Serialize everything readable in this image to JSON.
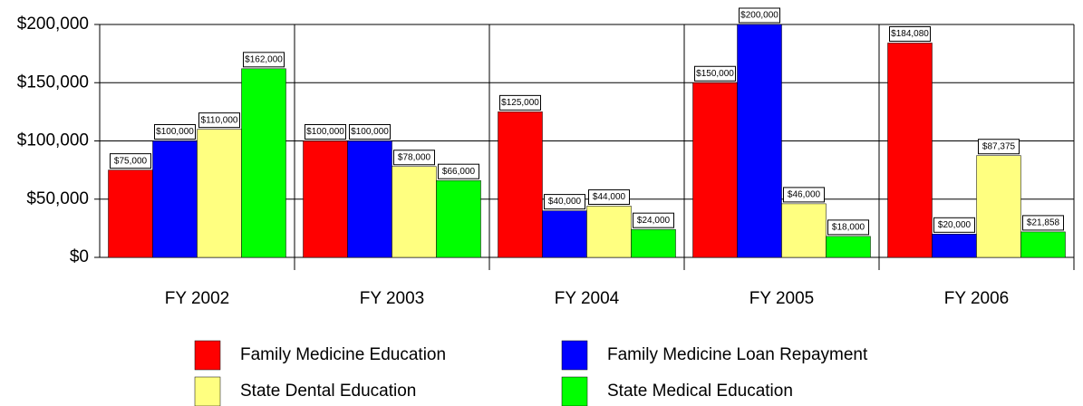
{
  "chart_data": {
    "type": "bar",
    "categories": [
      "FY 2002",
      "FY 2003",
      "FY 2004",
      "FY 2005",
      "FY 2006"
    ],
    "series": [
      {
        "name": "Family Medicine Education",
        "color": "#ff0000",
        "values": [
          75000,
          100000,
          125000,
          150000,
          184080
        ],
        "value_labels": [
          "$75,000",
          "$100,000",
          "$125,000",
          "$150,000",
          "$184,080"
        ]
      },
      {
        "name": "Family Medicine Loan Repayment",
        "color": "#0000ff",
        "values": [
          100000,
          100000,
          40000,
          200000,
          20000
        ],
        "value_labels": [
          "$100,000",
          "$100,000",
          "$40,000",
          "$200,000",
          "$20,000"
        ]
      },
      {
        "name": "State Dental Education",
        "color": "#ffff80",
        "values": [
          110000,
          78000,
          44000,
          46000,
          87375
        ],
        "value_labels": [
          "$110,000",
          "$78,000",
          "$44,000",
          "$46,000",
          "$87,375"
        ]
      },
      {
        "name": "State Medical Education",
        "color": "#00ff00",
        "values": [
          162000,
          66000,
          24000,
          18000,
          21858
        ],
        "value_labels": [
          "$162,000",
          "$66,000",
          "$24,000",
          "$18,000",
          "$21,858"
        ]
      }
    ],
    "ylim": [
      0,
      200000
    ],
    "yticks": [
      {
        "value": 0,
        "label": "$0"
      },
      {
        "value": 50000,
        "label": "$50,000"
      },
      {
        "value": 100000,
        "label": "$100,000"
      },
      {
        "value": 150000,
        "label": "$150,000"
      },
      {
        "value": 200000,
        "label": "$200,000"
      }
    ],
    "grid": true
  }
}
